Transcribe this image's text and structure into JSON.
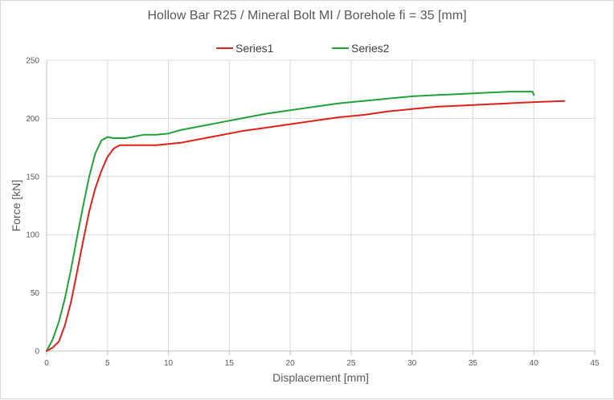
{
  "chart_data": {
    "type": "line",
    "title": "Hollow Bar R25 / Mineral Bolt MI / Borehole fi = 35 [mm]",
    "xlabel": "Displacement [mm]",
    "ylabel": "Force [kN]",
    "xlim": [
      0,
      45
    ],
    "ylim": [
      0,
      250
    ],
    "xticks": [
      "0",
      "5",
      "10",
      "15",
      "20",
      "25",
      "30",
      "35",
      "40",
      "45"
    ],
    "yticks": [
      "0",
      "50",
      "100",
      "150",
      "200",
      "250"
    ],
    "grid": true,
    "legend_position": "top",
    "series": [
      {
        "name": "Series1",
        "color": "#e0201b",
        "x": [
          0,
          0.5,
          1.0,
          1.5,
          2.0,
          2.5,
          3.0,
          3.5,
          4.0,
          4.5,
          5.0,
          5.5,
          6.0,
          6.5,
          7.0,
          8.0,
          9.0,
          10.0,
          11.0,
          12.0,
          14.0,
          16.0,
          18.0,
          20.0,
          22.0,
          24.0,
          26.0,
          28.0,
          30.0,
          32.0,
          34.0,
          36.0,
          38.0,
          40.0,
          42.5
        ],
        "y": [
          0,
          3,
          8,
          22,
          42,
          68,
          95,
          120,
          140,
          155,
          167,
          174,
          177,
          177,
          177,
          177,
          177,
          178,
          179,
          181,
          185,
          189,
          192,
          195,
          198,
          201,
          203,
          206,
          208,
          210,
          211,
          212,
          213,
          214,
          215
        ]
      },
      {
        "name": "Series2",
        "color": "#1fa23a",
        "x": [
          0,
          0.5,
          1.0,
          1.5,
          2.0,
          2.5,
          3.0,
          3.5,
          4.0,
          4.5,
          5.0,
          5.5,
          6.0,
          6.5,
          7.0,
          8.0,
          9.0,
          10.0,
          11.0,
          12.0,
          14.0,
          16.0,
          18.0,
          20.0,
          22.0,
          24.0,
          26.0,
          28.0,
          30.0,
          32.0,
          34.0,
          36.0,
          38.0,
          39.9,
          40.0
        ],
        "y": [
          0,
          10,
          25,
          45,
          70,
          98,
          125,
          150,
          170,
          181,
          184,
          183,
          183,
          183,
          184,
          186,
          186,
          187,
          190,
          192,
          196,
          200,
          204,
          207,
          210,
          213,
          215,
          217,
          219,
          220,
          221,
          222,
          223,
          223,
          220
        ]
      }
    ]
  }
}
